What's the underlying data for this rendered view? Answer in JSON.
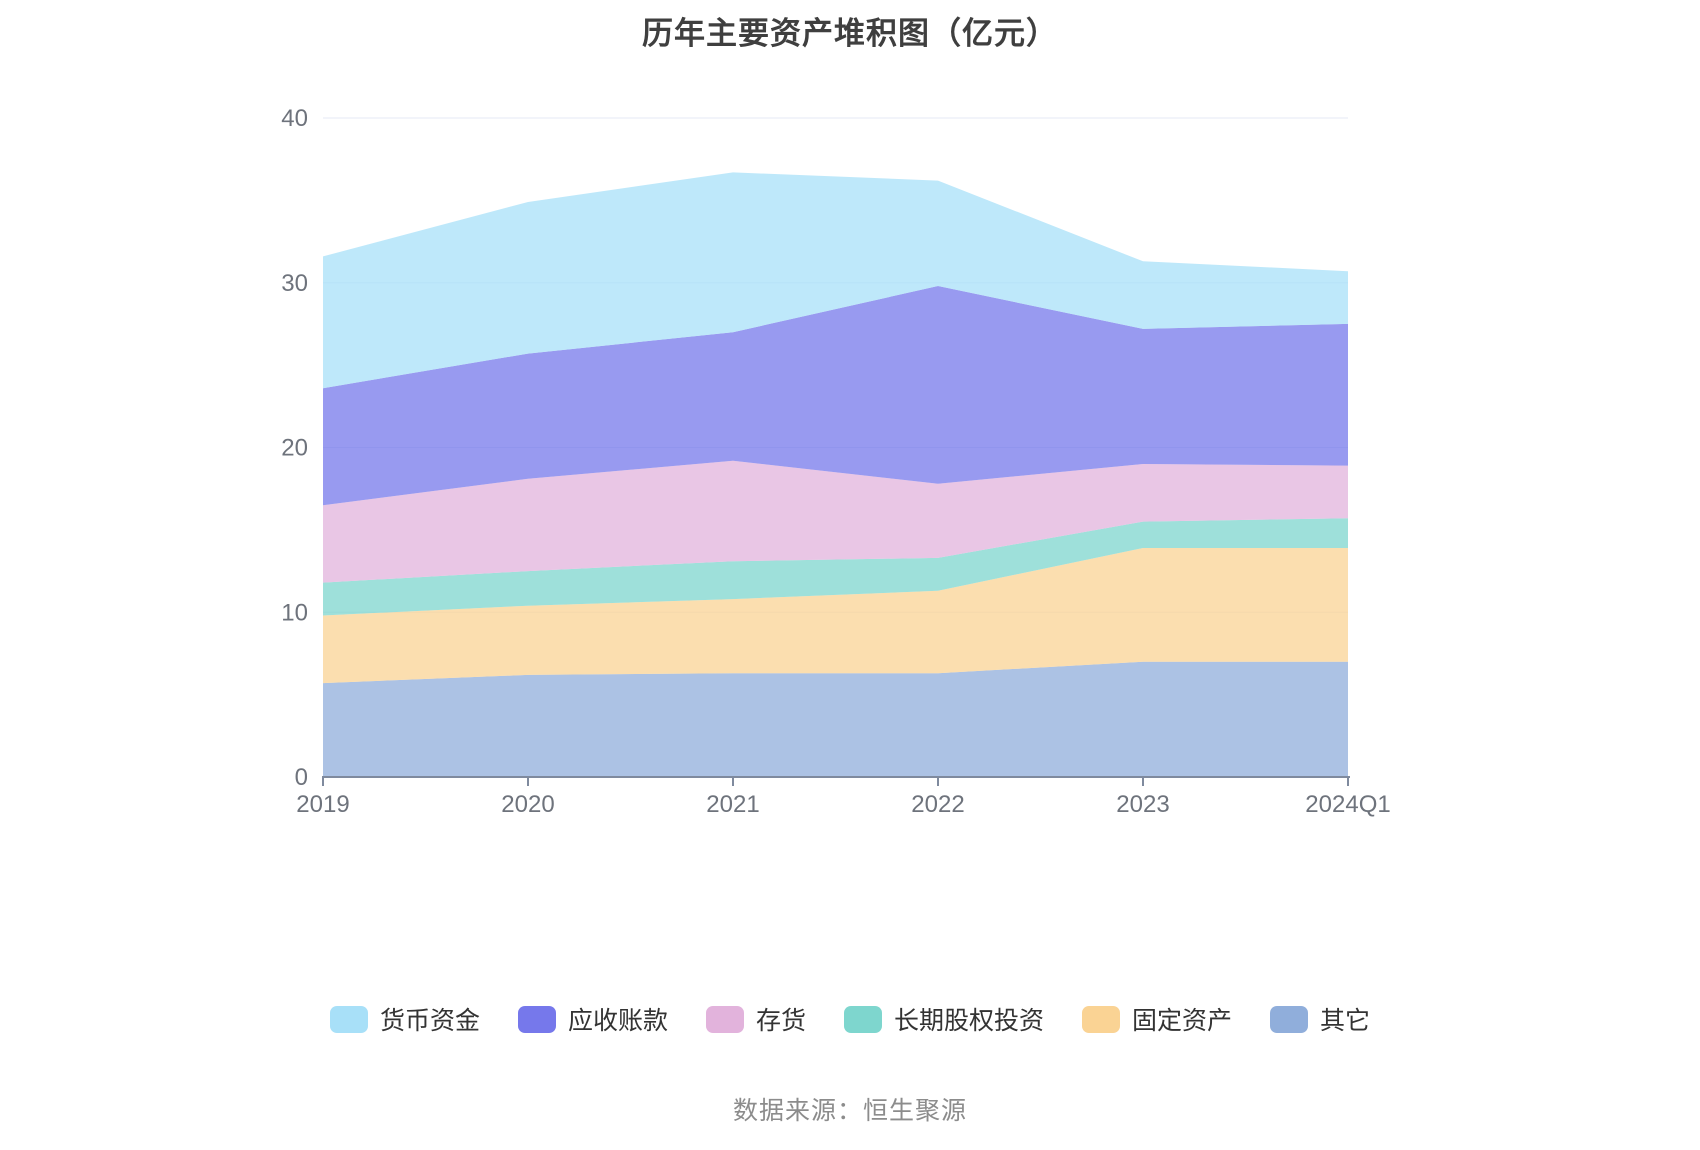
{
  "page": {
    "background": "#ffffff"
  },
  "chart": {
    "title": "历年主要资产堆积图（亿元）",
    "source_note": "数据来源：恒生聚源"
  },
  "chart_data": {
    "type": "area",
    "stacked": true,
    "title": "历年主要资产堆积图（亿元）",
    "unit": "亿元",
    "categories": [
      "2019",
      "2020",
      "2021",
      "2022",
      "2023",
      "2024Q1"
    ],
    "series": [
      {
        "key": "monetary-funds",
        "name": "货币资金",
        "color": "#a8e0f8",
        "values": [
          8.0,
          9.2,
          9.7,
          6.4,
          4.1,
          3.2
        ]
      },
      {
        "key": "accounts-receivable",
        "name": "应收账款",
        "color": "#7678eb",
        "values": [
          7.1,
          7.6,
          7.8,
          12.0,
          8.2,
          8.6
        ]
      },
      {
        "key": "inventory",
        "name": "存货",
        "color": "#e2b3dc",
        "values": [
          4.7,
          5.6,
          6.1,
          4.5,
          3.5,
          3.2
        ]
      },
      {
        "key": "long-term-equity-investment",
        "name": "长期股权投资",
        "color": "#7ed6ce",
        "values": [
          2.0,
          2.1,
          2.3,
          2.0,
          1.6,
          1.8
        ]
      },
      {
        "key": "fixed-assets",
        "name": "固定资产",
        "color": "#fad394",
        "values": [
          4.1,
          4.2,
          4.5,
          5.0,
          6.9,
          6.9
        ]
      },
      {
        "key": "other",
        "name": "其它",
        "color": "#90aedb",
        "values": [
          5.7,
          6.2,
          6.3,
          6.3,
          7.0,
          7.0
        ]
      }
    ],
    "stack_order_bottom_to_top": [
      "其它",
      "固定资产",
      "长期股权投资",
      "存货",
      "应收账款",
      "货币资金"
    ],
    "stack_totals": [
      31.6,
      34.9,
      36.7,
      36.2,
      31.3,
      30.7
    ],
    "ylim": [
      0,
      40
    ],
    "y_ticks": [
      0,
      10,
      20,
      30,
      40
    ],
    "grid": true,
    "legend_position": "bottom",
    "area_opacity": 0.75,
    "grid_color": "#e4eaf4",
    "axis_color": "#7f8a9e",
    "tick_label_color": "#6e737c"
  }
}
